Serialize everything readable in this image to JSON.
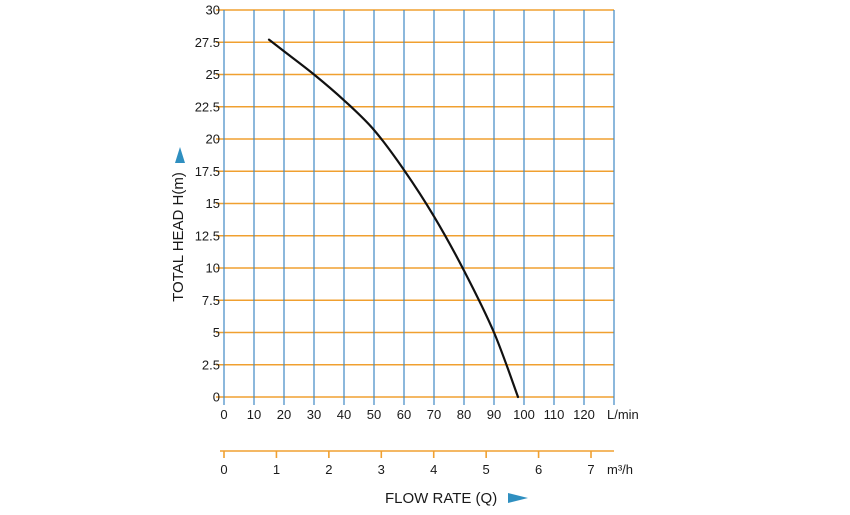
{
  "chart_data": {
    "type": "line",
    "title": "",
    "xlabel": "FLOW RATE (Q)",
    "ylabel": "TOTAL HEAD H(m)",
    "x_unit_label": "L/min",
    "x2_unit_label": "m³/h",
    "x": [
      15,
      20,
      30,
      40,
      50,
      60,
      70,
      80,
      90,
      98
    ],
    "series": [
      {
        "values": [
          27.7,
          26.8,
          25.0,
          23.0,
          20.7,
          17.6,
          14.0,
          9.8,
          5.0,
          0
        ]
      }
    ],
    "xlim": [
      0,
      130
    ],
    "ylim": [
      0,
      30
    ],
    "x_ticks": [
      "0",
      "10",
      "20",
      "30",
      "40",
      "50",
      "60",
      "70",
      "80",
      "90",
      "100",
      "110",
      "120"
    ],
    "x_tick_values": [
      0,
      10,
      20,
      30,
      40,
      50,
      60,
      70,
      80,
      90,
      100,
      110,
      120
    ],
    "y_ticks": [
      "0",
      "2.5",
      "5",
      "7.5",
      "10",
      "12.5",
      "15",
      "17.5",
      "20",
      "22.5",
      "25",
      "27.5",
      "30"
    ],
    "y_tick_values": [
      0,
      2.5,
      5,
      7.5,
      10,
      12.5,
      15,
      17.5,
      20,
      22.5,
      25,
      27.5,
      30
    ],
    "x2_ticks": [
      "0",
      "1",
      "2",
      "3",
      "4",
      "5",
      "6",
      "7"
    ],
    "x2_tick_values": [
      0,
      1,
      2,
      3,
      4,
      5,
      6,
      7
    ],
    "grid": true,
    "colors": {
      "horizontal_grid": "#f0a030",
      "vertical_grid": "#3f88c5",
      "curve": "#111111",
      "arrow": "#2f8fc0"
    }
  }
}
